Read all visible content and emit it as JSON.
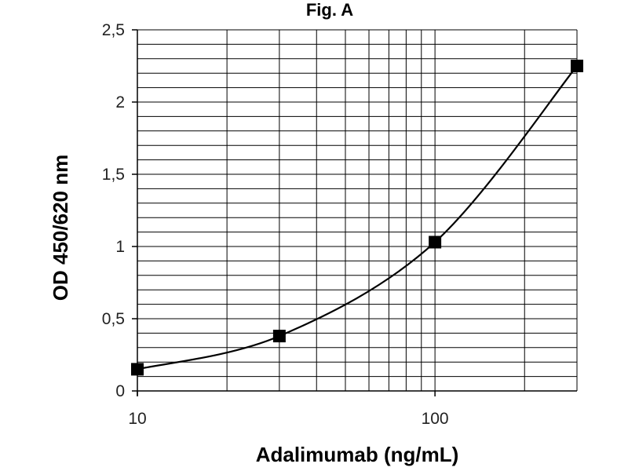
{
  "chart_data": {
    "type": "line",
    "title": "Fig. A",
    "xlabel": "Adalimumab (ng/mL)",
    "ylabel": "OD 450/620 nm",
    "xscale": "log",
    "xlim": [
      10,
      300
    ],
    "ylim": [
      0,
      2.5
    ],
    "x_tick_labels": [
      "10",
      "100"
    ],
    "y_tick_labels": [
      "0",
      "0,5",
      "1",
      "1,5",
      "2",
      "2,5"
    ],
    "grid": true,
    "legend": "none",
    "series": [
      {
        "x": [
          10,
          30,
          100,
          300
        ],
        "y": [
          0.15,
          0.38,
          1.03,
          2.25
        ],
        "marker": "square",
        "line": "smooth"
      }
    ],
    "colors": {
      "line": "#000000",
      "grid": "#000000",
      "marker": "#000000"
    }
  }
}
